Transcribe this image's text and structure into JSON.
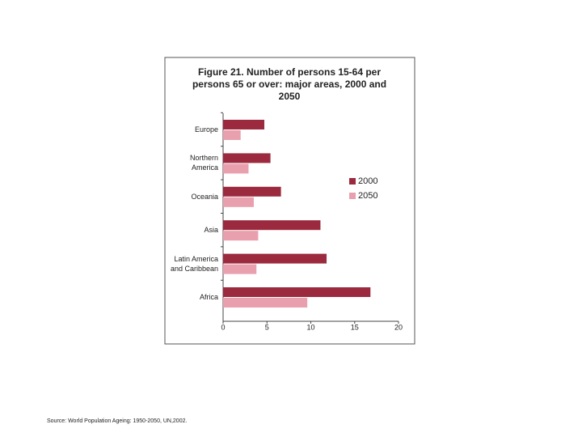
{
  "chart_data": {
    "type": "hbar",
    "title": "Figure 21.  Number of persons 15-64 per persons 65 or over: major areas, 2000 and 2050",
    "categories": [
      "Europe",
      "Northern America",
      "Oceania",
      "Asia",
      "Latin America and Caribbean",
      "Africa"
    ],
    "series": [
      {
        "name": "2000",
        "color": "#9b2a3e",
        "values": [
          4.7,
          5.4,
          6.6,
          11.1,
          11.8,
          16.8
        ]
      },
      {
        "name": "2050",
        "color": "#e8a0ae",
        "values": [
          2.0,
          2.9,
          3.5,
          4.0,
          3.8,
          9.6
        ]
      }
    ],
    "xlim": [
      0,
      20
    ],
    "xticks": [
      0,
      5,
      10,
      15,
      20
    ],
    "legend": "right",
    "source": "Source: World Population Ageing: 1950-2050, UN,2002."
  }
}
